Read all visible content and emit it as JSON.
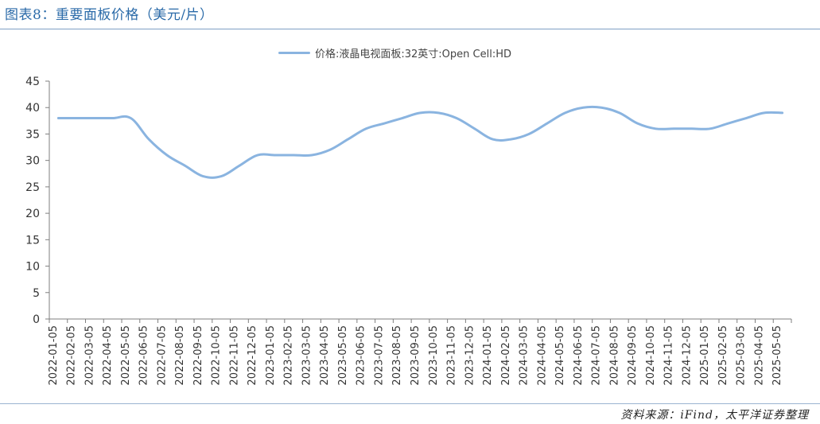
{
  "figure": {
    "title": "图表8：重要面板价格（美元/片）",
    "source": "资料来源：iFind，太平洋证券整理"
  },
  "colors": {
    "series": "#8ab4e0",
    "axis": "#7f7f7f",
    "title": "#2a6aa8",
    "rule": "#7f9fc4"
  },
  "chart_data": {
    "type": "line",
    "title": "",
    "xlabel": "",
    "ylabel": "",
    "ylim": [
      0,
      45
    ],
    "yticks": [
      0,
      5,
      10,
      15,
      20,
      25,
      30,
      35,
      40,
      45
    ],
    "grid": false,
    "legend": "top-center",
    "categories": [
      "2022-01-05",
      "2022-02-05",
      "2022-03-05",
      "2022-04-05",
      "2022-05-05",
      "2022-06-05",
      "2022-07-05",
      "2022-08-05",
      "2022-09-05",
      "2022-10-05",
      "2022-11-05",
      "2022-12-05",
      "2023-01-05",
      "2023-02-05",
      "2023-03-05",
      "2023-04-05",
      "2023-05-05",
      "2023-06-05",
      "2023-07-05",
      "2023-08-05",
      "2023-09-05",
      "2023-10-05",
      "2023-11-05",
      "2023-12-05",
      "2024-01-05",
      "2024-02-05",
      "2024-03-05",
      "2024-04-05",
      "2024-05-05",
      "2024-06-05",
      "2024-07-05",
      "2024-08-05",
      "2024-09-05",
      "2024-10-05",
      "2024-11-05",
      "2024-12-05",
      "2025-01-05",
      "2025-02-05",
      "2025-03-05",
      "2025-04-05",
      "2025-05-05"
    ],
    "series": [
      {
        "name": "价格:液晶电视面板:32英寸:Open Cell:HD",
        "values": [
          38,
          38,
          38,
          38,
          38,
          34,
          31,
          29,
          27,
          27,
          29,
          31,
          31,
          31,
          31,
          32,
          34,
          36,
          37,
          38,
          39,
          39,
          38,
          36,
          34,
          34,
          35,
          37,
          39,
          40,
          40,
          39,
          37,
          36,
          36,
          36,
          36,
          37,
          38,
          39,
          39
        ]
      }
    ]
  }
}
